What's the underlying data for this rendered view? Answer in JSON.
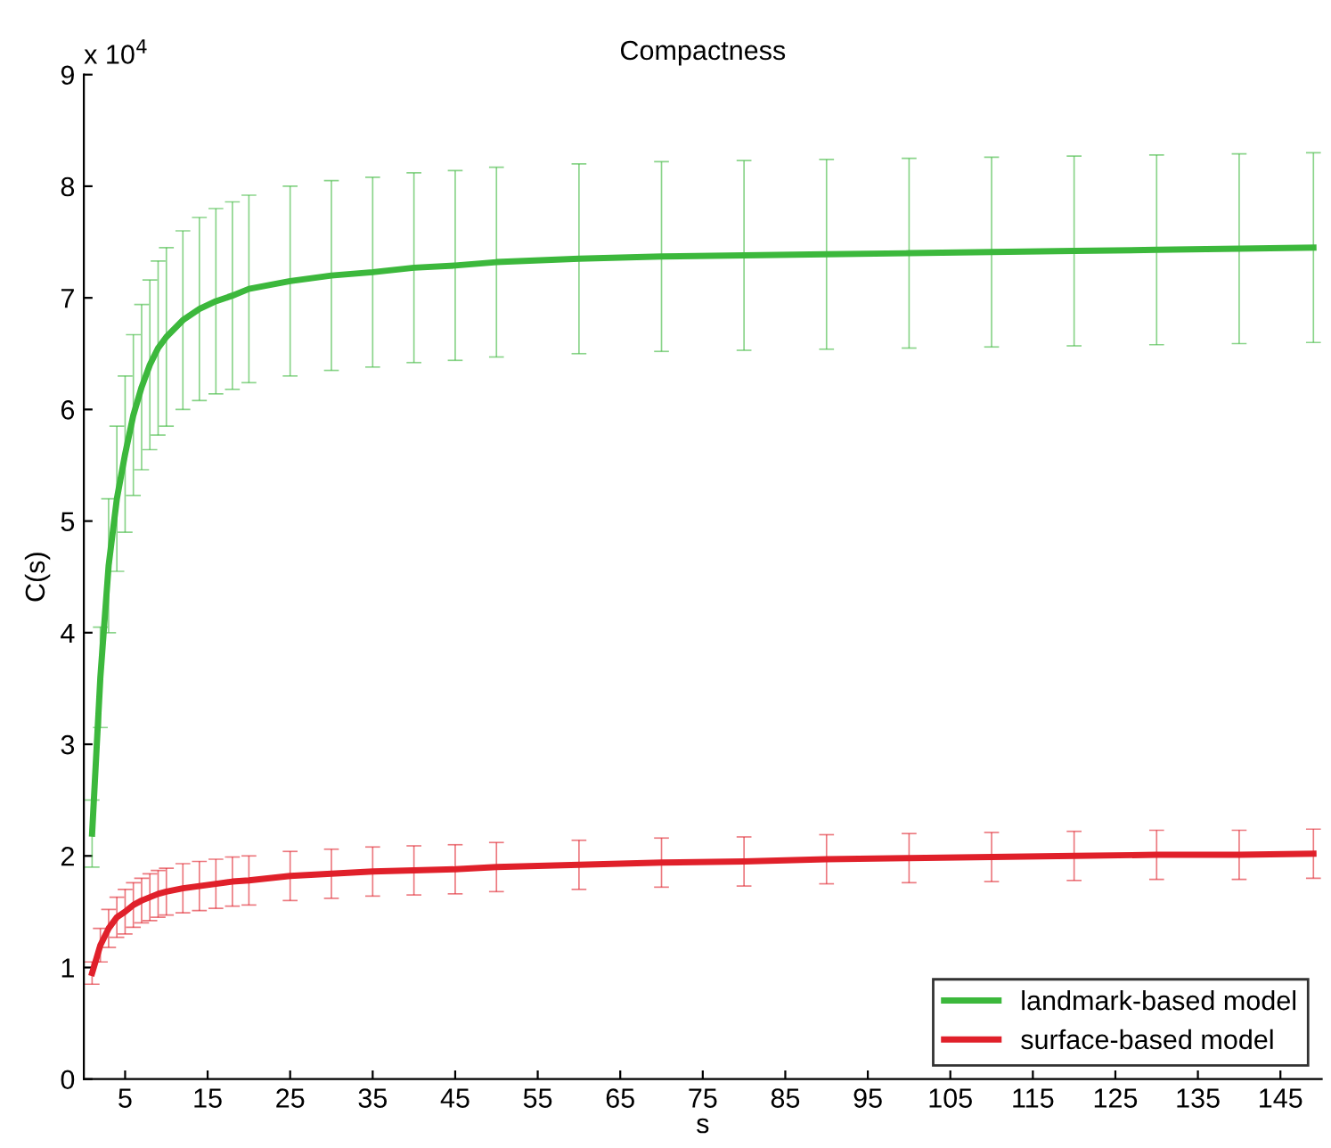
{
  "chart_data": {
    "type": "line",
    "title": "Compactness",
    "xlabel": "s",
    "ylabel": "C(s)",
    "annotations": [
      "x 10$^{4}$"
    ],
    "x": [
      1,
      2,
      3,
      4,
      5,
      6,
      7,
      8,
      9,
      10,
      12,
      14,
      16,
      18,
      20,
      25,
      30,
      35,
      40,
      45,
      50,
      60,
      70,
      80,
      90,
      100,
      110,
      120,
      130,
      140,
      149
    ],
    "series": [
      {
        "name": "landmark-based model",
        "color": "#3cb83c",
        "values": [
          2.2,
          3.6,
          4.6,
          5.2,
          5.6,
          5.95,
          6.2,
          6.4,
          6.55,
          6.65,
          6.8,
          6.9,
          6.97,
          7.02,
          7.08,
          7.15,
          7.2,
          7.23,
          7.27,
          7.29,
          7.32,
          7.35,
          7.37,
          7.38,
          7.39,
          7.4,
          7.41,
          7.42,
          7.43,
          7.44,
          7.45
        ],
        "errors": [
          0.3,
          0.45,
          0.6,
          0.65,
          0.7,
          0.72,
          0.74,
          0.76,
          0.78,
          0.8,
          0.8,
          0.82,
          0.83,
          0.84,
          0.84,
          0.85,
          0.85,
          0.85,
          0.85,
          0.85,
          0.85,
          0.85,
          0.85,
          0.85,
          0.85,
          0.85,
          0.85,
          0.85,
          0.85,
          0.85,
          0.85
        ]
      },
      {
        "name": "surface-based model",
        "color": "#e0202a",
        "values": [
          0.95,
          1.2,
          1.35,
          1.45,
          1.5,
          1.56,
          1.6,
          1.63,
          1.66,
          1.68,
          1.71,
          1.73,
          1.75,
          1.77,
          1.78,
          1.82,
          1.84,
          1.86,
          1.87,
          1.88,
          1.9,
          1.92,
          1.94,
          1.95,
          1.97,
          1.98,
          1.99,
          2.0,
          2.01,
          2.01,
          2.02
        ],
        "errors": [
          0.1,
          0.15,
          0.17,
          0.18,
          0.2,
          0.2,
          0.2,
          0.21,
          0.21,
          0.21,
          0.22,
          0.22,
          0.22,
          0.22,
          0.22,
          0.22,
          0.22,
          0.22,
          0.22,
          0.22,
          0.22,
          0.22,
          0.22,
          0.22,
          0.22,
          0.22,
          0.22,
          0.22,
          0.22,
          0.22,
          0.22
        ]
      }
    ],
    "xlim": [
      0,
      150
    ],
    "xticks": [
      5,
      15,
      25,
      35,
      45,
      55,
      65,
      75,
      85,
      95,
      105,
      115,
      125,
      135,
      145
    ],
    "ylim": [
      0,
      9
    ],
    "yticks": [
      0,
      1,
      2,
      3,
      4,
      5,
      6,
      7,
      8,
      9
    ],
    "legend": "bottom right",
    "grid": false,
    "marker": "none",
    "line_style": "solid"
  }
}
